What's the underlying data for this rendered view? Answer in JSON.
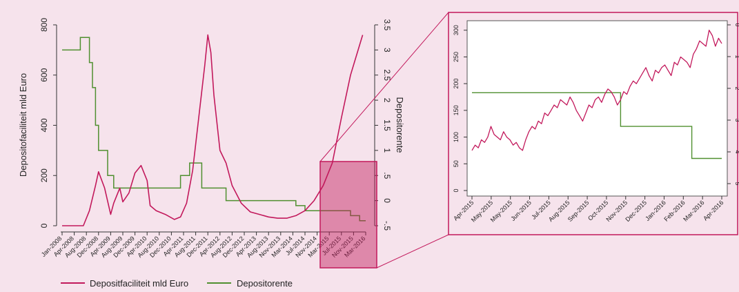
{
  "colors": {
    "background": "#f6e3ec",
    "deposit_line": "#c2185b",
    "rate_line": "#4f8f2f",
    "zoom_box": "#c2185b",
    "inset_background": "#ffffff"
  },
  "legend": {
    "items": [
      {
        "label": "Depositfaciliteit mld Euro",
        "color": "#c2185b"
      },
      {
        "label": "Depositorente",
        "color": "#4f8f2f"
      }
    ]
  },
  "chart_data": [
    {
      "type": "line",
      "ylabel": "Depositofaciliteit mld Euro",
      "y2label": "Depositorente",
      "ylim": [
        0,
        800
      ],
      "yticks": [
        0,
        200,
        400,
        600,
        800
      ],
      "y2lim": [
        -0.5,
        3.5
      ],
      "y2ticks": [
        3.5,
        3,
        2.5,
        2,
        1.5,
        1,
        0.5,
        0,
        -0.5
      ],
      "y2ticklabels": [
        "3.5",
        "3",
        "2.5",
        "2",
        "1.5",
        "1",
        ".5",
        "0",
        "-.5"
      ],
      "xticklabels": [
        "Jan-2008",
        "Apr-2008",
        "Aug-2008",
        "Dec-2008",
        "Apr-2009",
        "Aug-2009",
        "Dec-2009",
        "Apr-2010",
        "Aug-2010",
        "Dec-2010",
        "Apr-2011",
        "Aug-2011",
        "Dec-2011",
        "Apr-2012",
        "Aug-2012",
        "Dec-2012",
        "Apr-2013",
        "Aug-2013",
        "Nov-2013",
        "Mar-2014",
        "Jul-2014",
        "Nov-2014",
        "Mar-2015",
        "Jul-2015",
        "Nov-2015",
        "Mar-2016"
      ],
      "series": [
        {
          "name": "Depositfaciliteit mld Euro",
          "axis": "left",
          "x": [
            "2008-01",
            "2008-04",
            "2008-07",
            "2008-08",
            "2008-10",
            "2008-12",
            "2009-01",
            "2009-03",
            "2009-05",
            "2009-06",
            "2009-08",
            "2009-09",
            "2009-11",
            "2010-01",
            "2010-03",
            "2010-05",
            "2010-06",
            "2010-08",
            "2010-11",
            "2011-02",
            "2011-04",
            "2011-06",
            "2011-08",
            "2011-10",
            "2011-12",
            "2012-01",
            "2012-02",
            "2012-03",
            "2012-05",
            "2012-07",
            "2012-09",
            "2012-12",
            "2013-03",
            "2013-06",
            "2013-09",
            "2013-12",
            "2014-03",
            "2014-06",
            "2014-09",
            "2014-12",
            "2015-03",
            "2015-06",
            "2015-09",
            "2015-12",
            "2016-03",
            "2016-04"
          ],
          "values": [
            0,
            0,
            0,
            0,
            60,
            160,
            215,
            150,
            45,
            90,
            150,
            95,
            130,
            210,
            240,
            180,
            80,
            60,
            45,
            25,
            35,
            90,
            220,
            430,
            640,
            760,
            690,
            520,
            300,
            250,
            160,
            90,
            55,
            45,
            35,
            30,
            30,
            40,
            60,
            100,
            160,
            250,
            430,
            600,
            720,
            760
          ]
        },
        {
          "name": "Depositorente",
          "axis": "right",
          "steps": [
            {
              "from": "2008-01",
              "to": "2008-07",
              "value": 3.0
            },
            {
              "from": "2008-07",
              "to": "2008-10",
              "value": 3.25
            },
            {
              "from": "2008-10",
              "to": "2008-11",
              "value": 2.75
            },
            {
              "from": "2008-11",
              "to": "2008-12",
              "value": 2.25
            },
            {
              "from": "2008-12",
              "to": "2009-01",
              "value": 1.5
            },
            {
              "from": "2009-01",
              "to": "2009-04",
              "value": 1.0
            },
            {
              "from": "2009-04",
              "to": "2009-06",
              "value": 0.5
            },
            {
              "from": "2009-06",
              "to": "2011-04",
              "value": 0.25
            },
            {
              "from": "2011-04",
              "to": "2011-07",
              "value": 0.5
            },
            {
              "from": "2011-07",
              "to": "2011-11",
              "value": 0.75
            },
            {
              "from": "2011-11",
              "to": "2012-07",
              "value": 0.25
            },
            {
              "from": "2012-07",
              "to": "2014-06",
              "value": 0.0
            },
            {
              "from": "2014-06",
              "to": "2014-09",
              "value": -0.1
            },
            {
              "from": "2014-09",
              "to": "2015-12",
              "value": -0.2
            },
            {
              "from": "2015-12",
              "to": "2016-03",
              "value": -0.3
            },
            {
              "from": "2016-03",
              "to": "2016-05",
              "value": -0.4
            }
          ]
        }
      ]
    },
    {
      "type": "line",
      "ylim": [
        0,
        310
      ],
      "yticks": [
        0,
        50,
        100,
        150,
        200,
        250,
        300
      ],
      "y2ticks_visible": [
        "0",
        "1",
        "2",
        "3",
        "4",
        "5"
      ],
      "xticklabels": [
        "Apr-2015",
        "May-2015",
        "May-2015",
        "Jun-2015",
        "Jul-2015",
        "Aug-2015",
        "Sep-2015",
        "Oct-2015",
        "Nov-2015",
        "Dec-2015",
        "Jan-2016",
        "Feb-2016",
        "Mar-2016",
        "Apr-2016"
      ],
      "series": [
        {
          "name": "Depositfaciliteit mld Euro",
          "axis": "left",
          "values": [
            75,
            85,
            80,
            95,
            90,
            100,
            120,
            105,
            100,
            95,
            110,
            100,
            95,
            85,
            90,
            80,
            75,
            95,
            110,
            120,
            115,
            130,
            125,
            145,
            140,
            150,
            160,
            155,
            170,
            165,
            160,
            175,
            165,
            150,
            140,
            130,
            145,
            160,
            155,
            170,
            175,
            165,
            180,
            190,
            185,
            175,
            160,
            170,
            185,
            180,
            195,
            205,
            200,
            210,
            220,
            230,
            215,
            205,
            225,
            220,
            230,
            235,
            225,
            215,
            240,
            235,
            250,
            245,
            240,
            230,
            255,
            265,
            280,
            275,
            270,
            300,
            290,
            270,
            285,
            275
          ]
        },
        {
          "name": "Depositorente",
          "axis": "right",
          "steps": [
            {
              "from": 0,
              "to": 0.595,
              "value": 183
            },
            {
              "from": 0.595,
              "to": 0.88,
              "value": 120
            },
            {
              "from": 0.88,
              "to": 1.0,
              "value": 60
            }
          ]
        }
      ]
    }
  ]
}
